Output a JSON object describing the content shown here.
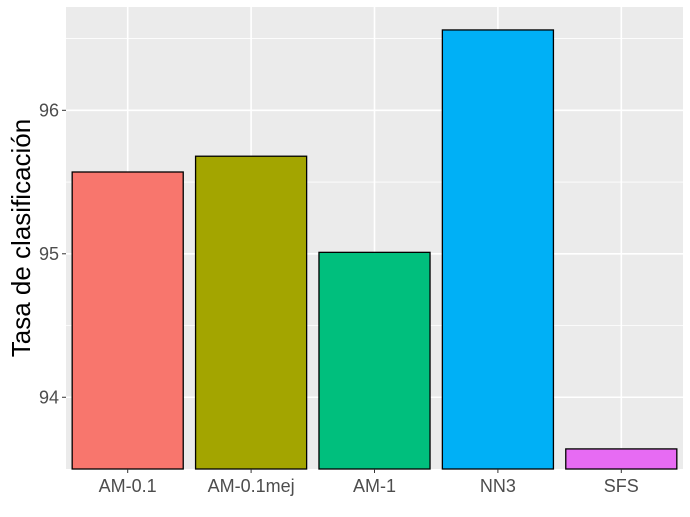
{
  "chart_data": {
    "type": "bar",
    "title": "",
    "xlabel": "",
    "ylabel": "Tasa de clasificación",
    "categories": [
      "AM-0.1",
      "AM-0.1mej",
      "AM-1",
      "NN3",
      "SFS"
    ],
    "values": [
      95.57,
      95.68,
      95.01,
      96.56,
      93.64
    ],
    "colors": [
      "#F8766D",
      "#A3A500",
      "#00BF7D",
      "#00B0F6",
      "#E76BF3"
    ],
    "ylim": [
      93.5,
      96.72
    ],
    "yticks": [
      94,
      95,
      96
    ],
    "ytick_labels": [
      "94",
      "95",
      "96"
    ],
    "grid": true,
    "legend": "none",
    "panel_background": "#EBEBEB",
    "bar_outline": "#000000"
  }
}
